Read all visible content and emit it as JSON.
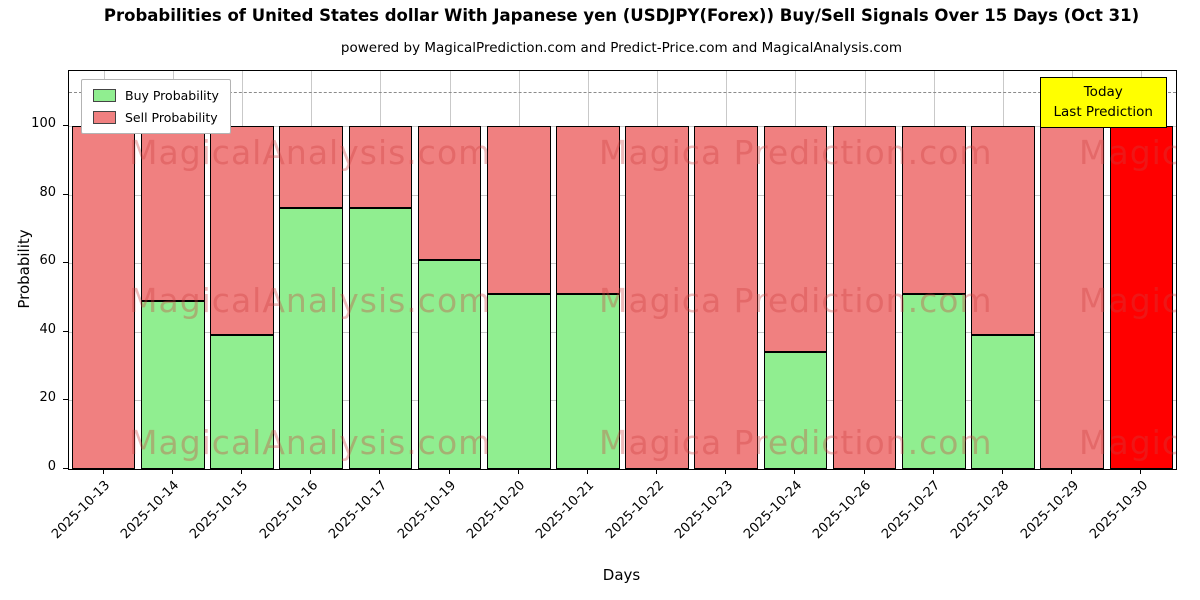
{
  "title": "Probabilities of United States dollar With Japanese yen (USDJPY(Forex)) Buy/Sell Signals Over 15 Days (Oct 31)",
  "subtitle": "powered by MagicalPrediction.com and Predict-Price.com and MagicalAnalysis.com",
  "legend": [
    {
      "label": "Buy Probability",
      "color": "#90EE90"
    },
    {
      "label": "Sell Probability",
      "color": "#F08080"
    }
  ],
  "today_box": {
    "line1": "Today",
    "line2": "Last Prediction",
    "bg": "#FFFF00"
  },
  "watermark": {
    "texts": [
      "MagicalAnalysis.com",
      "Magica Prediction.com"
    ],
    "rows": [
      62,
      210,
      352
    ],
    "cols": [
      60,
      530,
      1010
    ],
    "col_text_index": [
      0,
      1,
      0
    ]
  },
  "chart_data": {
    "type": "bar",
    "stacked": true,
    "title": "Probabilities of United States dollar With Japanese yen (USDJPY(Forex)) Buy/Sell Signals Over 15 Days (Oct 31)",
    "xlabel": "Days",
    "ylabel": "Probability",
    "ylim": [
      0,
      116
    ],
    "yticks": [
      0,
      20,
      40,
      60,
      80,
      100
    ],
    "grid": true,
    "dashed_line_y": 110,
    "legend_position": "upper left",
    "categories": [
      "2025-10-13",
      "2025-10-14",
      "2025-10-15",
      "2025-10-16",
      "2025-10-17",
      "2025-10-19",
      "2025-10-20",
      "2025-10-21",
      "2025-10-22",
      "2025-10-23",
      "2025-10-24",
      "2025-10-26",
      "2025-10-27",
      "2025-10-28",
      "2025-10-29",
      "2025-10-30"
    ],
    "series": [
      {
        "name": "Buy Probability",
        "color": "#90EE90",
        "values": [
          0,
          49,
          39,
          76,
          76,
          61,
          51,
          51,
          0,
          0,
          34,
          0,
          51,
          39,
          0,
          0
        ]
      },
      {
        "name": "Sell Probability",
        "color": "#F08080",
        "values": [
          100,
          51,
          61,
          24,
          24,
          39,
          49,
          49,
          100,
          100,
          66,
          100,
          49,
          61,
          100,
          100
        ]
      }
    ],
    "today_index": 15,
    "today_color": "#FF0000"
  }
}
